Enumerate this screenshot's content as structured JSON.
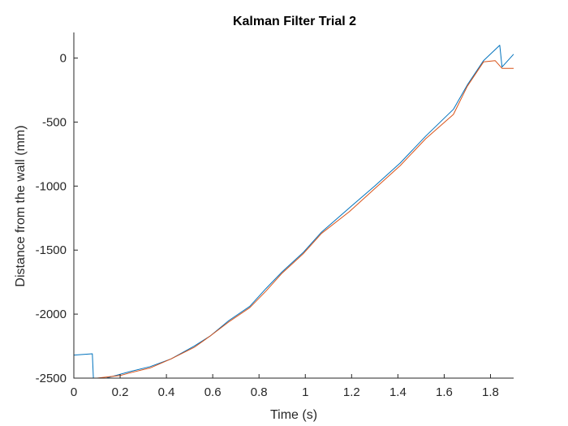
{
  "chart_data": {
    "type": "line",
    "title": "Kalman Filter Trial 2",
    "xlabel": "Time (s)",
    "ylabel": "Distance from the wall (mm)",
    "xlim": [
      0,
      1.9
    ],
    "ylim": [
      -2500,
      200
    ],
    "xticks": [
      0,
      0.2,
      0.4,
      0.6,
      0.8,
      1,
      1.2,
      1.4,
      1.6,
      1.8
    ],
    "xtick_labels": [
      "0",
      "0.2",
      "0.4",
      "0.6",
      "0.8",
      "1",
      "1.2",
      "1.4",
      "1.6",
      "1.8"
    ],
    "yticks": [
      -2500,
      -2000,
      -1500,
      -1000,
      -500,
      0
    ],
    "ytick_labels": [
      "-2500",
      "-2000",
      "-1500",
      "-1000",
      "-500",
      "0"
    ],
    "grid": false,
    "series": [
      {
        "color": "#0072BD",
        "x": [
          0,
          0.08,
          0.085,
          0.12,
          0.18,
          0.24,
          0.33,
          0.42,
          0.52,
          0.59,
          0.67,
          0.76,
          0.83,
          0.9,
          0.99,
          1.07,
          1.19,
          1.3,
          1.41,
          1.52,
          1.64,
          1.7,
          1.77,
          1.84,
          1.85,
          1.9
        ],
        "y": [
          -2320,
          -2310,
          -2515,
          -2510,
          -2480,
          -2450,
          -2410,
          -2350,
          -2250,
          -2170,
          -2050,
          -1940,
          -1800,
          -1670,
          -1520,
          -1360,
          -1170,
          -1000,
          -820,
          -610,
          -400,
          -210,
          -20,
          100,
          -70,
          30
        ]
      },
      {
        "color": "#D95319",
        "x": [
          0.1,
          0.2,
          0.24,
          0.33,
          0.42,
          0.52,
          0.59,
          0.67,
          0.76,
          0.83,
          0.9,
          0.99,
          1.07,
          1.19,
          1.3,
          1.41,
          1.52,
          1.64,
          1.7,
          1.77,
          1.82,
          1.85,
          1.9
        ],
        "y": [
          -2500,
          -2480,
          -2460,
          -2420,
          -2350,
          -2260,
          -2170,
          -2060,
          -1950,
          -1820,
          -1680,
          -1530,
          -1370,
          -1200,
          -1020,
          -840,
          -630,
          -440,
          -220,
          -30,
          -20,
          -80,
          -80
        ]
      }
    ]
  }
}
